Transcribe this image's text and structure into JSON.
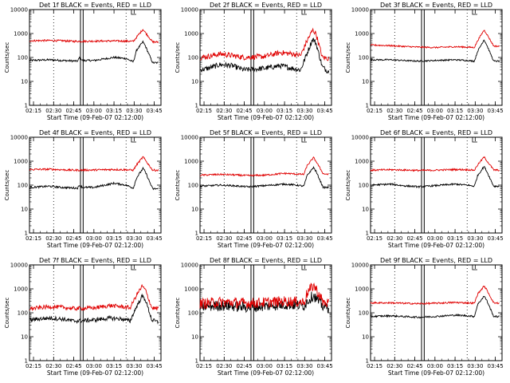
{
  "figure": {
    "colors": {
      "events": "#000000",
      "lld": "#e00000",
      "axes": "#000000",
      "marker": "#000000"
    }
  },
  "chart_data": [
    {
      "type": "line",
      "title": "Det 1f BLACK = Events, RED = LLD",
      "xlabel": "Start Time (09-Feb-07 02:12:00)",
      "ylabel": "Counts/sec",
      "ylog": true,
      "ylim": [
        1,
        10000
      ],
      "xlim": [
        "02:12",
        "03:50"
      ],
      "xticks": [
        "02:15",
        "02:30",
        "02:45",
        "03:00",
        "03:15",
        "03:30",
        "03:45"
      ],
      "yticks": [
        "1",
        "10",
        "100",
        "1000",
        "10000"
      ],
      "vertical_dotted_lines": [
        "02:30",
        "03:24"
      ],
      "vertical_solid_lines": [
        "02:50",
        "02:52"
      ],
      "noise": 0.08,
      "series": [
        {
          "name": "Events",
          "color": "#000000",
          "x": [
            2.2,
            2.45,
            2.6,
            2.8,
            2.82,
            2.86,
            3.0,
            3.25,
            3.4,
            3.49,
            3.53,
            3.61,
            3.64,
            3.73,
            3.8
          ],
          "y": [
            75,
            80,
            75,
            70,
            100,
            75,
            75,
            100,
            90,
            65,
            200,
            450,
            300,
            60,
            60
          ]
        },
        {
          "name": "LLD",
          "color": "#e00000",
          "x": [
            2.2,
            2.45,
            2.6,
            2.75,
            3.0,
            3.25,
            3.4,
            3.49,
            3.53,
            3.61,
            3.64,
            3.73,
            3.8
          ],
          "y": [
            500,
            510,
            500,
            470,
            480,
            490,
            480,
            470,
            700,
            1500,
            1100,
            440,
            440
          ]
        }
      ]
    },
    {
      "type": "line",
      "title": "Det 2f BLACK = Events, RED = LLD",
      "xlabel": "Start Time (09-Feb-07 02:12:00)",
      "ylabel": "Counts/sec",
      "ylog": true,
      "ylim": [
        1,
        10000
      ],
      "xlim": [
        "02:12",
        "03:50"
      ],
      "xticks": [
        "02:15",
        "02:30",
        "02:45",
        "03:00",
        "03:15",
        "03:30",
        "03:45"
      ],
      "yticks": [
        "1",
        "10",
        "100",
        "1000",
        "10000"
      ],
      "vertical_dotted_lines": [
        "02:30",
        "03:24"
      ],
      "vertical_solid_lines": [
        "02:50",
        "02:52"
      ],
      "noise": 0.22,
      "series": [
        {
          "name": "Events",
          "color": "#000000",
          "x": [
            2.2,
            2.3,
            2.45,
            2.6,
            2.75,
            3.0,
            3.2,
            3.35,
            3.45,
            3.53,
            3.6,
            3.64,
            3.72,
            3.8
          ],
          "y": [
            30,
            35,
            50,
            45,
            30,
            35,
            45,
            35,
            30,
            150,
            600,
            400,
            40,
            25
          ]
        },
        {
          "name": "LLD",
          "color": "#e00000",
          "x": [
            2.2,
            2.3,
            2.45,
            2.6,
            2.75,
            3.0,
            3.2,
            3.35,
            3.45,
            3.53,
            3.6,
            3.64,
            3.72,
            3.8
          ],
          "y": [
            100,
            110,
            140,
            120,
            100,
            110,
            160,
            140,
            120,
            500,
            1400,
            1000,
            100,
            90
          ]
        }
      ]
    },
    {
      "type": "line",
      "title": "Det 3f BLACK = Events, RED = LLD",
      "xlabel": "Start Time (09-Feb-07 02:12:00)",
      "ylabel": "Counts/sec",
      "ylog": true,
      "ylim": [
        1,
        10000
      ],
      "xlim": [
        "02:12",
        "03:50"
      ],
      "xticks": [
        "02:15",
        "02:30",
        "02:45",
        "03:00",
        "03:15",
        "03:30",
        "03:45"
      ],
      "yticks": [
        "1",
        "10",
        "100",
        "1000",
        "10000"
      ],
      "vertical_dotted_lines": [
        "02:30",
        "03:24"
      ],
      "vertical_solid_lines": [
        "02:50",
        "02:52"
      ],
      "noise": 0.06,
      "series": [
        {
          "name": "Events",
          "color": "#000000",
          "x": [
            2.2,
            2.45,
            2.6,
            2.8,
            3.0,
            3.25,
            3.4,
            3.49,
            3.53,
            3.61,
            3.64,
            3.73,
            3.8
          ],
          "y": [
            80,
            80,
            75,
            70,
            75,
            80,
            75,
            70,
            180,
            550,
            350,
            70,
            70
          ]
        },
        {
          "name": "LLD",
          "color": "#e00000",
          "x": [
            2.2,
            2.45,
            2.6,
            2.8,
            3.0,
            3.25,
            3.4,
            3.49,
            3.53,
            3.61,
            3.64,
            3.73,
            3.8
          ],
          "y": [
            330,
            310,
            290,
            270,
            260,
            280,
            270,
            260,
            500,
            1400,
            1000,
            300,
            290
          ]
        }
      ]
    },
    {
      "type": "line",
      "title": "Det 4f BLACK = Events, RED = LLD",
      "xlabel": "Start Time (09-Feb-07 02:12:00)",
      "ylabel": "Counts/sec",
      "ylog": true,
      "ylim": [
        1,
        10000
      ],
      "xlim": [
        "02:12",
        "03:50"
      ],
      "xticks": [
        "02:15",
        "02:30",
        "02:45",
        "03:00",
        "03:15",
        "03:30",
        "03:45"
      ],
      "yticks": [
        "1",
        "10",
        "100",
        "1000",
        "10000"
      ],
      "vertical_dotted_lines": [
        "02:30",
        "03:24"
      ],
      "vertical_solid_lines": [
        "02:50",
        "02:52"
      ],
      "noise": 0.08,
      "series": [
        {
          "name": "Events",
          "color": "#000000",
          "x": [
            2.2,
            2.45,
            2.6,
            2.8,
            2.82,
            2.86,
            3.0,
            3.25,
            3.4,
            3.49,
            3.53,
            3.61,
            3.64,
            3.73,
            3.8
          ],
          "y": [
            80,
            90,
            80,
            75,
            100,
            80,
            80,
            120,
            100,
            75,
            200,
            500,
            350,
            70,
            70
          ]
        },
        {
          "name": "LLD",
          "color": "#e00000",
          "x": [
            2.2,
            2.45,
            2.6,
            2.75,
            3.0,
            3.25,
            3.4,
            3.49,
            3.53,
            3.61,
            3.64,
            3.73,
            3.8
          ],
          "y": [
            450,
            460,
            440,
            420,
            430,
            450,
            440,
            420,
            700,
            1500,
            1100,
            420,
            420
          ]
        }
      ]
    },
    {
      "type": "line",
      "title": "Det 5f BLACK = Events, RED = LLD",
      "xlabel": "Start Time (09-Feb-07 02:12:00)",
      "ylabel": "Counts/sec",
      "ylog": true,
      "ylim": [
        1,
        10000
      ],
      "xlim": [
        "02:12",
        "03:50"
      ],
      "xticks": [
        "02:15",
        "02:30",
        "02:45",
        "03:00",
        "03:15",
        "03:30",
        "03:45"
      ],
      "yticks": [
        "1",
        "10",
        "100",
        "1000",
        "10000"
      ],
      "vertical_dotted_lines": [
        "02:30",
        "03:24"
      ],
      "vertical_solid_lines": [
        "02:50",
        "02:52"
      ],
      "noise": 0.07,
      "series": [
        {
          "name": "Events",
          "color": "#000000",
          "x": [
            2.2,
            2.45,
            2.6,
            2.8,
            3.0,
            3.25,
            3.4,
            3.49,
            3.53,
            3.61,
            3.64,
            3.73,
            3.8
          ],
          "y": [
            90,
            100,
            95,
            85,
            95,
            110,
            100,
            90,
            250,
            550,
            380,
            80,
            80
          ]
        },
        {
          "name": "LLD",
          "color": "#e00000",
          "x": [
            2.2,
            2.45,
            2.6,
            2.8,
            3.0,
            3.25,
            3.4,
            3.49,
            3.53,
            3.61,
            3.64,
            3.73,
            3.8
          ],
          "y": [
            260,
            280,
            270,
            250,
            260,
            310,
            290,
            280,
            650,
            1400,
            1000,
            300,
            280
          ]
        }
      ]
    },
    {
      "type": "line",
      "title": "Det 6f BLACK = Events, RED = LLD",
      "xlabel": "Start Time (09-Feb-07 02:12:00)",
      "ylabel": "Counts/sec",
      "ylog": true,
      "ylim": [
        1,
        10000
      ],
      "xlim": [
        "02:12",
        "03:50"
      ],
      "xticks": [
        "02:15",
        "02:30",
        "02:45",
        "03:00",
        "03:15",
        "03:30",
        "03:45"
      ],
      "yticks": [
        "1",
        "10",
        "100",
        "1000",
        "10000"
      ],
      "vertical_dotted_lines": [
        "02:30",
        "03:24"
      ],
      "vertical_solid_lines": [
        "02:50",
        "02:52"
      ],
      "noise": 0.07,
      "series": [
        {
          "name": "Events",
          "color": "#000000",
          "x": [
            2.2,
            2.45,
            2.6,
            2.8,
            3.0,
            3.25,
            3.4,
            3.49,
            3.53,
            3.61,
            3.64,
            3.73,
            3.8
          ],
          "y": [
            100,
            110,
            95,
            85,
            95,
            110,
            100,
            90,
            250,
            600,
            400,
            90,
            90
          ]
        },
        {
          "name": "LLD",
          "color": "#e00000",
          "x": [
            2.2,
            2.45,
            2.6,
            2.8,
            3.0,
            3.25,
            3.4,
            3.49,
            3.53,
            3.61,
            3.64,
            3.73,
            3.8
          ],
          "y": [
            420,
            440,
            430,
            410,
            420,
            450,
            440,
            420,
            700,
            1500,
            1100,
            430,
            420
          ]
        }
      ]
    },
    {
      "type": "line",
      "title": "Det 7f BLACK = Events, RED = LLD",
      "xlabel": "Start Time (09-Feb-07 02:12:00)",
      "ylabel": "Counts/sec",
      "ylog": true,
      "ylim": [
        1,
        10000
      ],
      "xlim": [
        "02:12",
        "03:50"
      ],
      "xticks": [
        "02:15",
        "02:30",
        "02:45",
        "03:00",
        "03:15",
        "03:30",
        "03:45"
      ],
      "yticks": [
        "1",
        "10",
        "100",
        "1000",
        "10000"
      ],
      "vertical_dotted_lines": [
        "02:30",
        "03:24"
      ],
      "vertical_solid_lines": [
        "02:50",
        "02:52"
      ],
      "noise": 0.17,
      "series": [
        {
          "name": "Events",
          "color": "#000000",
          "x": [
            2.2,
            2.3,
            2.45,
            2.6,
            2.75,
            3.0,
            3.2,
            3.35,
            3.45,
            3.53,
            3.6,
            3.64,
            3.72,
            3.8
          ],
          "y": [
            50,
            55,
            60,
            55,
            45,
            50,
            60,
            55,
            45,
            180,
            500,
            350,
            50,
            40
          ]
        },
        {
          "name": "LLD",
          "color": "#e00000",
          "x": [
            2.2,
            2.3,
            2.45,
            2.6,
            2.75,
            3.0,
            3.2,
            3.35,
            3.45,
            3.53,
            3.6,
            3.64,
            3.72,
            3.8
          ],
          "y": [
            150,
            160,
            180,
            170,
            150,
            160,
            200,
            180,
            160,
            550,
            1300,
            900,
            160,
            150
          ]
        }
      ]
    },
    {
      "type": "line",
      "title": "Det 8f BLACK = Events, RED = LLD",
      "xlabel": "Start Time (09-Feb-07 02:12:00)",
      "ylabel": "Counts/sec",
      "ylog": true,
      "ylim": [
        1,
        10000
      ],
      "xlim": [
        "02:12",
        "03:50"
      ],
      "xticks": [
        "02:15",
        "02:30",
        "02:45",
        "03:00",
        "03:15",
        "03:30",
        "03:45"
      ],
      "yticks": [
        "1",
        "10",
        "100",
        "1000",
        "10000"
      ],
      "vertical_dotted_lines": [
        "02:30",
        "03:24"
      ],
      "vertical_solid_lines": [
        "02:50",
        "02:52"
      ],
      "noise": 0.45,
      "series": [
        {
          "name": "Events",
          "color": "#000000",
          "x": [
            2.2,
            2.45,
            2.6,
            2.8,
            3.0,
            3.25,
            3.4,
            3.49,
            3.53,
            3.61,
            3.64,
            3.73,
            3.8
          ],
          "y": [
            180,
            200,
            190,
            170,
            190,
            220,
            210,
            200,
            300,
            550,
            400,
            180,
            170
          ]
        },
        {
          "name": "LLD",
          "color": "#e00000",
          "x": [
            2.2,
            2.45,
            2.6,
            2.8,
            3.0,
            3.25,
            3.4,
            3.49,
            3.53,
            3.61,
            3.64,
            3.73,
            3.8
          ],
          "y": [
            240,
            280,
            270,
            250,
            270,
            300,
            290,
            280,
            650,
            1400,
            1000,
            270,
            250
          ]
        }
      ]
    },
    {
      "type": "line",
      "title": "Det 9f BLACK = Events, RED = LLD",
      "xlabel": "Start Time (09-Feb-07 02:12:00)",
      "ylabel": "Counts/sec",
      "ylog": true,
      "ylim": [
        1,
        10000
      ],
      "xlim": [
        "02:12",
        "03:50"
      ],
      "xticks": [
        "02:15",
        "02:30",
        "02:45",
        "03:00",
        "03:15",
        "03:30",
        "03:45"
      ],
      "yticks": [
        "1",
        "10",
        "100",
        "1000",
        "10000"
      ],
      "vertical_dotted_lines": [
        "02:30",
        "03:24"
      ],
      "vertical_solid_lines": [
        "02:50",
        "02:52"
      ],
      "noise": 0.07,
      "series": [
        {
          "name": "Events",
          "color": "#000000",
          "x": [
            2.2,
            2.45,
            2.6,
            2.8,
            3.0,
            3.25,
            3.4,
            3.49,
            3.53,
            3.61,
            3.64,
            3.73,
            3.8
          ],
          "y": [
            70,
            75,
            70,
            65,
            70,
            80,
            75,
            70,
            220,
            500,
            350,
            70,
            70
          ]
        },
        {
          "name": "LLD",
          "color": "#e00000",
          "x": [
            2.2,
            2.45,
            2.6,
            2.8,
            3.0,
            3.25,
            3.4,
            3.49,
            3.53,
            3.61,
            3.64,
            3.73,
            3.8
          ],
          "y": [
            260,
            260,
            250,
            240,
            250,
            270,
            260,
            250,
            600,
            1300,
            950,
            260,
            250
          ]
        }
      ]
    }
  ]
}
